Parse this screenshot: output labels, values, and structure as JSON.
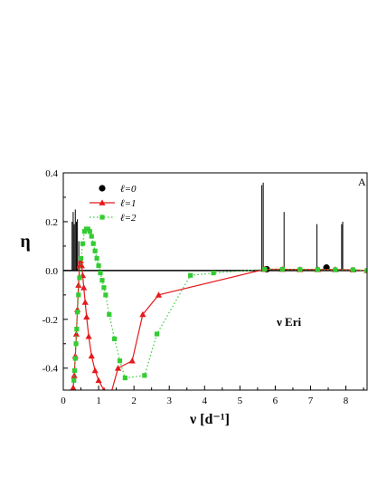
{
  "chart_data": {
    "type": "line",
    "xlabel": "ν [d⁻¹]",
    "ylabel": "η",
    "corner_label": "A",
    "annotation": "ν Eri",
    "xlim": [
      0,
      8.6
    ],
    "ylim": [
      -0.49,
      0.4
    ],
    "x_ticks": [
      0,
      1,
      2,
      3,
      4,
      5,
      6,
      7,
      8
    ],
    "y_ticks": [
      -0.4,
      -0.2,
      0.0,
      0.2,
      0.4
    ],
    "y_tick_labels": [
      "-0.4",
      "-0.2",
      "0.0",
      "0.2",
      "0.4"
    ],
    "grid": false,
    "legend_position": "top-left",
    "series": [
      {
        "name": "ℓ=0",
        "marker": "circle",
        "line": "none",
        "color": "#000000",
        "x": [
          5.76,
          7.45
        ],
        "y": [
          0.005,
          0.012
        ]
      },
      {
        "name": "ℓ=1",
        "marker": "triangle",
        "line": "solid",
        "color": "#e41a1c",
        "x": [
          0.28,
          0.31,
          0.34,
          0.37,
          0.4,
          0.43,
          0.46,
          0.49,
          0.52,
          0.55,
          0.58,
          0.62,
          0.66,
          0.72,
          0.8,
          0.9,
          1.0,
          1.15,
          1.3,
          1.55,
          1.95,
          2.25,
          2.7,
          5.7,
          6.2,
          6.7,
          7.2,
          7.7,
          8.2,
          8.6
        ],
        "y": [
          -0.48,
          -0.43,
          -0.35,
          -0.26,
          -0.16,
          -0.06,
          0.02,
          0.04,
          0.02,
          -0.02,
          -0.07,
          -0.13,
          -0.19,
          -0.27,
          -0.35,
          -0.41,
          -0.45,
          -0.49,
          -0.53,
          -0.4,
          -0.37,
          -0.18,
          -0.1,
          0.005,
          0.005,
          0.004,
          0.004,
          0.004,
          0.003,
          0.0
        ]
      },
      {
        "name": "ℓ=2",
        "marker": "square",
        "line": "dotted",
        "color": "#33cc33",
        "x": [
          0.3,
          0.32,
          0.34,
          0.36,
          0.38,
          0.4,
          0.43,
          0.46,
          0.5,
          0.55,
          0.6,
          0.65,
          0.7,
          0.75,
          0.8,
          0.85,
          0.9,
          0.95,
          1.0,
          1.05,
          1.1,
          1.15,
          1.2,
          1.3,
          1.45,
          1.6,
          1.75,
          2.3,
          2.65,
          3.6,
          4.25,
          5.7,
          6.2,
          6.7,
          7.2,
          7.7,
          8.2,
          8.6
        ],
        "y": [
          -0.45,
          -0.41,
          -0.36,
          -0.3,
          -0.24,
          -0.17,
          -0.1,
          -0.03,
          0.05,
          0.11,
          0.16,
          0.17,
          0.17,
          0.16,
          0.14,
          0.11,
          0.08,
          0.05,
          0.02,
          -0.01,
          -0.04,
          -0.07,
          -0.1,
          -0.18,
          -0.28,
          -0.37,
          -0.44,
          -0.43,
          -0.26,
          -0.02,
          -0.01,
          0.005,
          0.005,
          0.004,
          0.004,
          0.003,
          0.003,
          0.0
        ]
      }
    ],
    "spikes": {
      "color": "#000000",
      "x": [
        0.25,
        0.28,
        0.31,
        0.34,
        0.37,
        0.4,
        0.44,
        5.62,
        5.66,
        6.25,
        7.18,
        7.88,
        7.91
      ],
      "y": [
        0.2,
        0.24,
        0.19,
        0.25,
        0.2,
        0.21,
        0.12,
        0.35,
        0.36,
        0.24,
        0.19,
        0.19,
        0.2
      ]
    }
  }
}
